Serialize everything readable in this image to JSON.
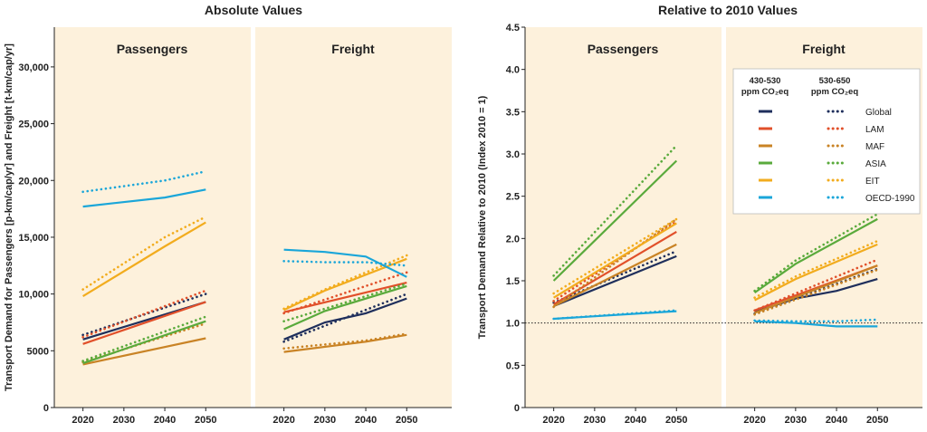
{
  "left_title": "Absolute Values",
  "right_title": "Relative to 2010 Values",
  "left_ylabel": "Transport Demand for Passengers [p-km/cap/yr] and Freight [t-km/cap/yr]",
  "right_ylabel": "Transport Demand Relative to 2010 (Index 2010 = 1)",
  "panel_titles": {
    "passengers": "Passengers",
    "freight": "Freight"
  },
  "legend": {
    "col1_line1": "430-530",
    "col1_line2": "ppm CO₂eq",
    "col2_line1": "530-650",
    "col2_line2": "ppm CO₂eq",
    "regions": [
      "Global",
      "LAM",
      "MAF",
      "ASIA",
      "EIT",
      "OECD-1990"
    ]
  },
  "colors": {
    "Global": "#1f2f5c",
    "LAM": "#e1502a",
    "MAF": "#c98325",
    "ASIA": "#5aaa3c",
    "EIT": "#f2ac1e",
    "OECD-1990": "#1aa6d9",
    "panel_bg": "#fdf1dc"
  },
  "chart_data": [
    {
      "type": "line",
      "panel": "Absolute Values - Passengers",
      "x": [
        2020,
        2030,
        2040,
        2050
      ],
      "xlim": [
        2013,
        2061
      ],
      "ylim": [
        0,
        33500
      ],
      "yticks": [
        0,
        5000,
        10000,
        15000,
        20000,
        25000,
        30000
      ],
      "ytick_labels": [
        "0",
        "5000",
        "10,000",
        "15,000",
        "20,000",
        "25,000",
        "30,000"
      ],
      "xtick_labels": [
        "2020",
        "2030",
        "2040",
        "2050"
      ],
      "series": [
        {
          "name": "Global",
          "scenario": "430-530",
          "x": [
            2020,
            2050
          ],
          "values": [
            6000,
            9300
          ]
        },
        {
          "name": "Global",
          "scenario": "530-650",
          "x": [
            2020,
            2050
          ],
          "values": [
            6400,
            10000
          ]
        },
        {
          "name": "LAM",
          "scenario": "430-530",
          "x": [
            2020,
            2050
          ],
          "values": [
            5600,
            9300
          ]
        },
        {
          "name": "LAM",
          "scenario": "530-650",
          "x": [
            2020,
            2050
          ],
          "values": [
            6200,
            10300
          ]
        },
        {
          "name": "MAF",
          "scenario": "430-530",
          "x": [
            2020,
            2050
          ],
          "values": [
            3800,
            6100
          ]
        },
        {
          "name": "MAF",
          "scenario": "530-650",
          "x": [
            2020,
            2050
          ],
          "values": [
            4000,
            7400
          ]
        },
        {
          "name": "ASIA",
          "scenario": "430-530",
          "x": [
            2020,
            2050
          ],
          "values": [
            3900,
            7600
          ]
        },
        {
          "name": "ASIA",
          "scenario": "530-650",
          "x": [
            2020,
            2050
          ],
          "values": [
            4100,
            8000
          ]
        },
        {
          "name": "EIT",
          "scenario": "430-530",
          "x": [
            2020,
            2040,
            2050
          ],
          "values": [
            9800,
            14200,
            16300
          ]
        },
        {
          "name": "EIT",
          "scenario": "530-650",
          "x": [
            2020,
            2040,
            2050
          ],
          "values": [
            10400,
            15000,
            16800
          ]
        },
        {
          "name": "OECD-1990",
          "scenario": "430-530",
          "x": [
            2020,
            2040,
            2050
          ],
          "values": [
            17700,
            18500,
            19200
          ]
        },
        {
          "name": "OECD-1990",
          "scenario": "530-650",
          "x": [
            2020,
            2040,
            2050
          ],
          "values": [
            19000,
            20000,
            20800
          ]
        }
      ]
    },
    {
      "type": "line",
      "panel": "Absolute Values - Freight",
      "x": [
        2020,
        2030,
        2040,
        2050
      ],
      "xlim": [
        2013,
        2061
      ],
      "ylim": [
        0,
        33500
      ],
      "xtick_labels": [
        "2020",
        "2030",
        "2040",
        "2050"
      ],
      "series": [
        {
          "name": "Global",
          "scenario": "430-530",
          "x": [
            2020,
            2030,
            2040,
            2050
          ],
          "values": [
            6000,
            7500,
            8300,
            9600
          ]
        },
        {
          "name": "Global",
          "scenario": "530-650",
          "x": [
            2020,
            2050
          ],
          "values": [
            5800,
            10000
          ]
        },
        {
          "name": "LAM",
          "scenario": "430-530",
          "x": [
            2020,
            2050
          ],
          "values": [
            8400,
            11000
          ]
        },
        {
          "name": "LAM",
          "scenario": "530-650",
          "x": [
            2020,
            2050
          ],
          "values": [
            8300,
            11900
          ]
        },
        {
          "name": "MAF",
          "scenario": "430-530",
          "x": [
            2020,
            2040,
            2050
          ],
          "values": [
            4900,
            5800,
            6400
          ]
        },
        {
          "name": "MAF",
          "scenario": "530-650",
          "x": [
            2020,
            2040,
            2050
          ],
          "values": [
            5200,
            5900,
            6500
          ]
        },
        {
          "name": "ASIA",
          "scenario": "430-530",
          "x": [
            2020,
            2030,
            2050
          ],
          "values": [
            6900,
            8500,
            10700
          ]
        },
        {
          "name": "ASIA",
          "scenario": "530-650",
          "x": [
            2020,
            2050
          ],
          "values": [
            7600,
            10900
          ]
        },
        {
          "name": "EIT",
          "scenario": "430-530",
          "x": [
            2020,
            2030,
            2050
          ],
          "values": [
            8600,
            10300,
            13100
          ]
        },
        {
          "name": "EIT",
          "scenario": "530-650",
          "x": [
            2020,
            2030,
            2050
          ],
          "values": [
            8700,
            10400,
            13400
          ]
        },
        {
          "name": "OECD-1990",
          "scenario": "430-530",
          "x": [
            2020,
            2030,
            2040,
            2050
          ],
          "values": [
            13900,
            13700,
            13300,
            11500
          ]
        },
        {
          "name": "OECD-1990",
          "scenario": "530-650",
          "x": [
            2020,
            2030,
            2040,
            2050
          ],
          "values": [
            12900,
            12800,
            12800,
            12500
          ]
        }
      ]
    },
    {
      "type": "line",
      "panel": "Relative to 2010 Values - Passengers",
      "x": [
        2020,
        2030,
        2040,
        2050
      ],
      "xlim": [
        2013,
        2061
      ],
      "ylim": [
        0,
        4.5
      ],
      "yticks": [
        0,
        0.5,
        1.0,
        1.5,
        2.0,
        2.5,
        3.0,
        3.5,
        4.0,
        4.5
      ],
      "ytick_labels": [
        "0",
        "0.5",
        "1.0",
        "1.5",
        "2.0",
        "2.5",
        "3.0",
        "3.5",
        "4.0",
        "4.5"
      ],
      "xtick_labels": [
        "2020",
        "2030",
        "2040",
        "2050"
      ],
      "reference_line": 1.0,
      "series": [
        {
          "name": "Global",
          "scenario": "430-530",
          "x": [
            2020,
            2050
          ],
          "values": [
            1.2,
            1.79
          ]
        },
        {
          "name": "Global",
          "scenario": "530-650",
          "x": [
            2020,
            2050
          ],
          "values": [
            1.24,
            1.85
          ]
        },
        {
          "name": "LAM",
          "scenario": "430-530",
          "x": [
            2020,
            2050
          ],
          "values": [
            1.22,
            2.08
          ]
        },
        {
          "name": "LAM",
          "scenario": "530-650",
          "x": [
            2020,
            2050
          ],
          "values": [
            1.26,
            2.2
          ]
        },
        {
          "name": "MAF",
          "scenario": "430-530",
          "x": [
            2020,
            2050
          ],
          "values": [
            1.2,
            1.93
          ]
        },
        {
          "name": "MAF",
          "scenario": "530-650",
          "x": [
            2020,
            2050
          ],
          "values": [
            1.19,
            2.23
          ]
        },
        {
          "name": "ASIA",
          "scenario": "430-530",
          "x": [
            2020,
            2050
          ],
          "values": [
            1.5,
            2.92
          ]
        },
        {
          "name": "ASIA",
          "scenario": "530-650",
          "x": [
            2020,
            2050
          ],
          "values": [
            1.56,
            3.1
          ]
        },
        {
          "name": "EIT",
          "scenario": "430-530",
          "x": [
            2020,
            2050
          ],
          "values": [
            1.3,
            2.18
          ]
        },
        {
          "name": "EIT",
          "scenario": "530-650",
          "x": [
            2020,
            2050
          ],
          "values": [
            1.35,
            2.23
          ]
        },
        {
          "name": "OECD-1990",
          "scenario": "430-530",
          "x": [
            2020,
            2050
          ],
          "values": [
            1.05,
            1.14
          ]
        },
        {
          "name": "OECD-1990",
          "scenario": "530-650",
          "x": [
            2020,
            2050
          ],
          "values": [
            1.05,
            1.15
          ]
        }
      ]
    },
    {
      "type": "line",
      "panel": "Relative to 2010 Values - Freight",
      "x": [
        2020,
        2030,
        2040,
        2050
      ],
      "xlim": [
        2013,
        2061
      ],
      "ylim": [
        0,
        4.5
      ],
      "xtick_labels": [
        "2020",
        "2030",
        "2040",
        "2050"
      ],
      "reference_line": 1.0,
      "series": [
        {
          "name": "Global",
          "scenario": "430-530",
          "x": [
            2020,
            2030,
            2040,
            2050
          ],
          "values": [
            1.13,
            1.29,
            1.38,
            1.52
          ]
        },
        {
          "name": "Global",
          "scenario": "530-650",
          "x": [
            2020,
            2050
          ],
          "values": [
            1.11,
            1.64
          ]
        },
        {
          "name": "LAM",
          "scenario": "430-530",
          "x": [
            2020,
            2050
          ],
          "values": [
            1.15,
            1.68
          ]
        },
        {
          "name": "LAM",
          "scenario": "530-650",
          "x": [
            2020,
            2050
          ],
          "values": [
            1.15,
            1.75
          ]
        },
        {
          "name": "MAF",
          "scenario": "430-530",
          "x": [
            2020,
            2050
          ],
          "values": [
            1.12,
            1.68
          ]
        },
        {
          "name": "MAF",
          "scenario": "530-650",
          "x": [
            2020,
            2050
          ],
          "values": [
            1.1,
            1.63
          ]
        },
        {
          "name": "ASIA",
          "scenario": "430-530",
          "x": [
            2020,
            2030,
            2050
          ],
          "values": [
            1.36,
            1.7,
            2.23
          ]
        },
        {
          "name": "ASIA",
          "scenario": "530-650",
          "x": [
            2020,
            2030,
            2050
          ],
          "values": [
            1.38,
            1.74,
            2.29
          ]
        },
        {
          "name": "EIT",
          "scenario": "430-530",
          "x": [
            2020,
            2030,
            2050
          ],
          "values": [
            1.27,
            1.52,
            1.93
          ]
        },
        {
          "name": "EIT",
          "scenario": "530-650",
          "x": [
            2020,
            2030,
            2050
          ],
          "values": [
            1.3,
            1.55,
            1.97
          ]
        },
        {
          "name": "OECD-1990",
          "scenario": "430-530",
          "x": [
            2020,
            2030,
            2040,
            2050
          ],
          "values": [
            1.02,
            1.0,
            0.96,
            0.96
          ]
        },
        {
          "name": "OECD-1990",
          "scenario": "530-650",
          "x": [
            2020,
            2030,
            2040,
            2050
          ],
          "values": [
            1.03,
            1.02,
            1.02,
            1.04
          ]
        }
      ]
    }
  ]
}
